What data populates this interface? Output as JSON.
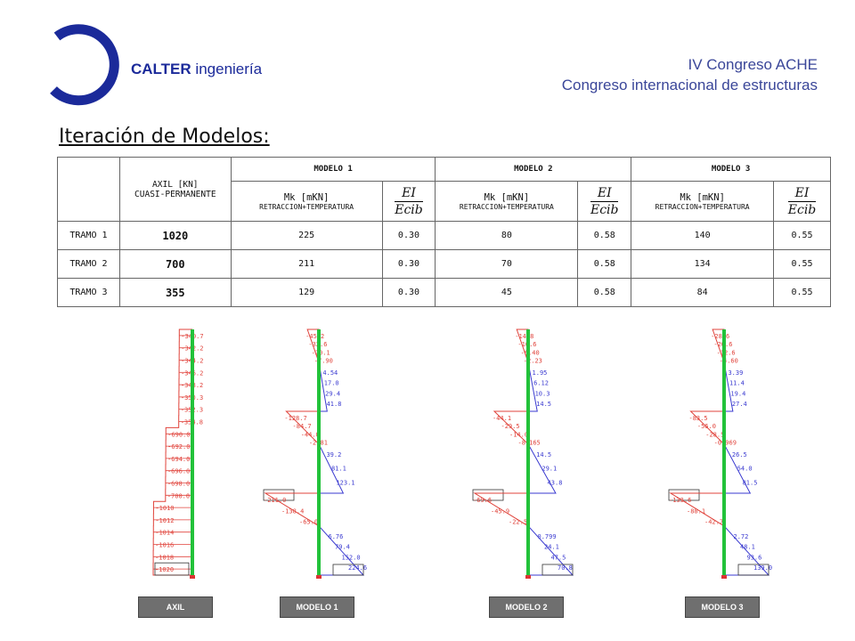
{
  "header": {
    "company": "CALTER",
    "company_suffix": "ingeniería",
    "conference_line1": "IV Congreso ACHE",
    "conference_line2": "Congreso internacional de estructuras"
  },
  "title": "Iteración de Modelos:",
  "table": {
    "axil_header_line1": "AXIL [KN]",
    "axil_header_line2": "CUASI-PERMANENTE",
    "models": [
      "MODELO 1",
      "MODELO 2",
      "MODELO 3"
    ],
    "mk_label": "Mk [mKN]",
    "mk_sub": "RETRACCION+TEMPERATURA",
    "ratio_num": "EI",
    "ratio_den": "Ecib",
    "rows": [
      {
        "name": "TRAMO 1",
        "axil": "1020",
        "m1_mk": "225",
        "m1_r": "0.30",
        "m2_mk": "80",
        "m2_r": "0.58",
        "m3_mk": "140",
        "m3_r": "0.55"
      },
      {
        "name": "TRAMO 2",
        "axil": "700",
        "m1_mk": "211",
        "m1_r": "0.30",
        "m2_mk": "70",
        "m2_r": "0.58",
        "m3_mk": "134",
        "m3_r": "0.55"
      },
      {
        "name": "TRAMO 3",
        "axil": "355",
        "m1_mk": "129",
        "m1_r": "0.30",
        "m2_mk": "45",
        "m2_r": "0.58",
        "m3_mk": "84",
        "m3_r": "0.55"
      }
    ]
  },
  "diagrams": {
    "axil": {
      "labels": [
        "-340.7",
        "-342.2",
        "-344.2",
        "-346.2",
        "-348.2",
        "-350.3",
        "-352.3",
        "-354.8",
        "-690.0",
        "-692.0",
        "-694.0",
        "-696.0",
        "-698.0",
        "-700.0",
        "-1010",
        "-1012",
        "-1014",
        "-1016",
        "-1018",
        "-1020"
      ],
      "values": [
        340.7,
        342.2,
        344.2,
        346.2,
        348.2,
        350.3,
        352.3,
        354.8,
        690.0,
        692.0,
        694.0,
        696.0,
        698.0,
        700.0,
        1010,
        1012,
        1014,
        1016,
        1018,
        1020
      ]
    },
    "modelo1": {
      "neg": [
        "-45.2",
        "-32.6",
        "-20.1",
        "-7.90",
        "-128.7",
        "-84.7",
        "-44.0",
        "-2.81",
        "-211.0",
        "-138.4",
        "-65.0"
      ],
      "pos": [
        "4.54",
        "17.0",
        "29.4",
        "41.8",
        "39.2",
        "81.1",
        "123.1",
        "6.76",
        "79.4",
        "152.0",
        "224.6"
      ]
    },
    "modelo2": {
      "neg": [
        "-14.8",
        "-10.6",
        "-6.40",
        "-2.23",
        "-44.1",
        "-29.5",
        "-14.0",
        "-8.165",
        "-69.6",
        "-45.9",
        "-22.5"
      ],
      "pos": [
        "1.95",
        "6.12",
        "10.3",
        "14.5",
        "14.5",
        "29.1",
        "43.8",
        "0.799",
        "24.1",
        "47.5",
        "70.8"
      ]
    },
    "modelo3": {
      "neg": [
        "-28.6",
        "-20.6",
        "-12.6",
        "-4.60",
        "-83.5",
        "-56.0",
        "-28.5",
        "-0.969",
        "-133.6",
        "-88.1",
        "-42.7"
      ],
      "pos": [
        "3.39",
        "11.4",
        "19.4",
        "27.4",
        "26.5",
        "54.0",
        "81.5",
        "2.72",
        "48.1",
        "93.6",
        "139.0"
      ]
    }
  },
  "buttons": {
    "axil": "AXIL",
    "modelo1": "MODELO 1",
    "modelo2": "MODELO 2",
    "modelo3": "MODELO 3"
  },
  "colors": {
    "brand_blue": "#1b2a9a",
    "negative": "#e0433b",
    "positive": "#3a3ad0",
    "column": "#22c23a"
  }
}
